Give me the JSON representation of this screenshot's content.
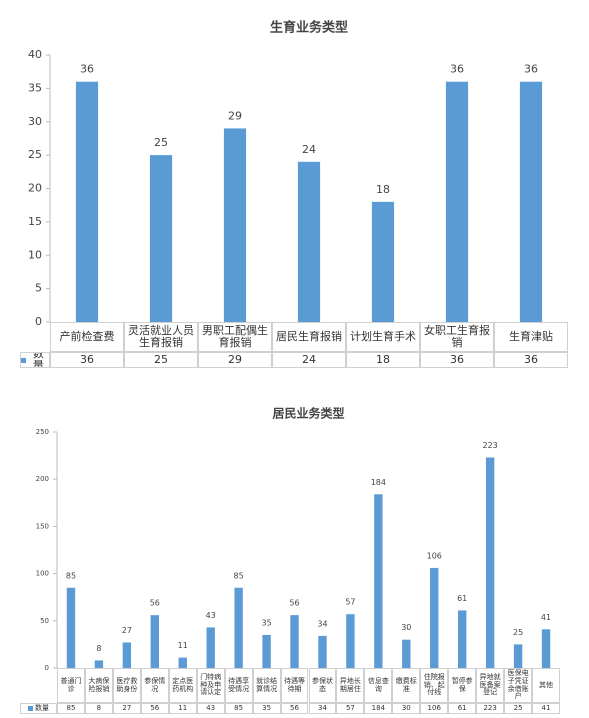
{
  "chart_data": [
    {
      "type": "bar",
      "title": "生育业务类型",
      "categories": [
        "产前检查费",
        "灵活就业人员生育报销",
        "男职工配偶生育报销",
        "居民生育报销",
        "计划生育手术",
        "女职工生育报销",
        "生育津贴"
      ],
      "series": [
        {
          "name": "数量",
          "color": "#5b9bd5",
          "values": [
            36,
            25,
            29,
            24,
            18,
            36,
            36
          ]
        }
      ],
      "ylim": [
        0,
        40
      ],
      "yticks": [
        0,
        5,
        10,
        15,
        20,
        25,
        30,
        35,
        40
      ],
      "grid": false
    },
    {
      "type": "bar",
      "title": "居民业务类型",
      "categories": [
        "普通门诊",
        "大病保险报销",
        "医疗救助身份",
        "参保情况",
        "定点医药机构",
        "门特病种及申请认定",
        "待遇享受情况",
        "就诊结算情况",
        "待遇等待期",
        "参保状态",
        "异地长期居住",
        "信息查询",
        "缴费标准",
        "住院报销、起付线",
        "暂停参保",
        "异地就医备案登记",
        "医保电子凭证余借账户",
        "其他"
      ],
      "series": [
        {
          "name": "数量",
          "color": "#5b9bd5",
          "values": [
            85,
            8,
            27,
            56,
            11,
            43,
            85,
            35,
            56,
            34,
            57,
            184,
            30,
            106,
            61,
            223,
            25,
            41
          ]
        }
      ],
      "ylim": [
        0,
        250
      ],
      "yticks": [
        0,
        50,
        100,
        150,
        200,
        250
      ],
      "grid": false
    }
  ]
}
